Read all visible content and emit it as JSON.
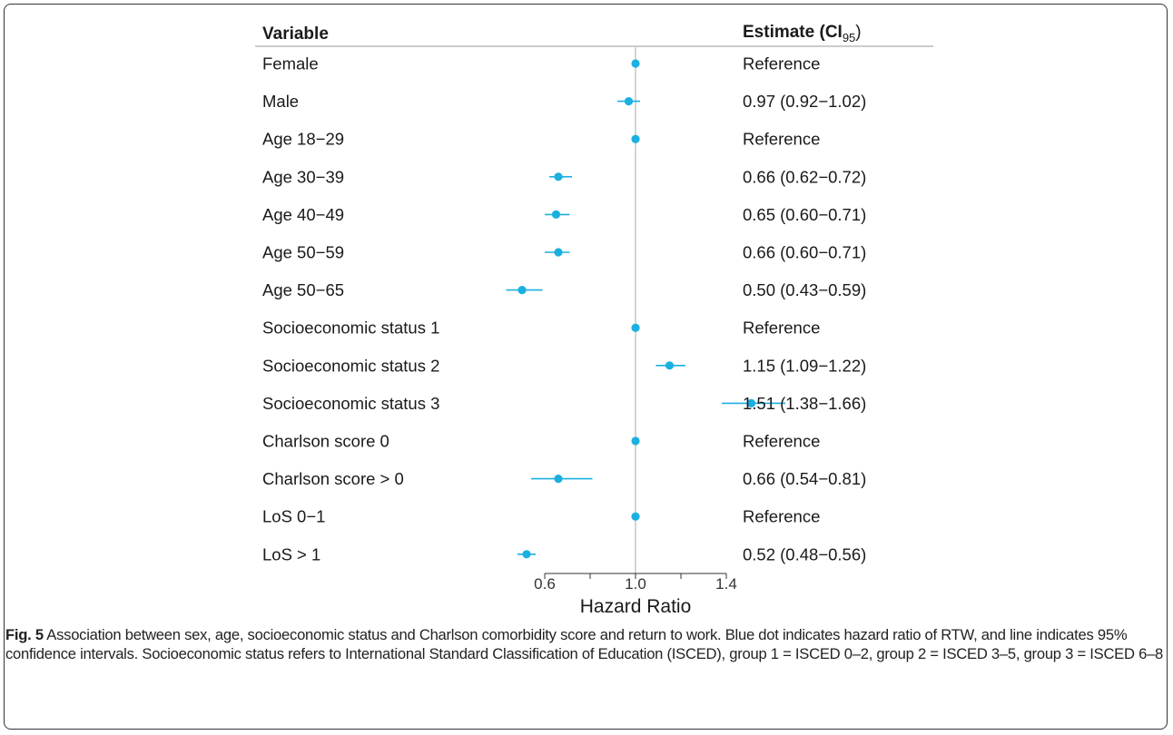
{
  "chart_data": {
    "type": "forest",
    "column_headers": {
      "variable": "Variable",
      "estimate_main": "Estimate (",
      "estimate_bold": "CI",
      "estimate_sub": "95",
      "estimate_close": ")"
    },
    "rows": [
      {
        "label": "Female",
        "hr": 1.0,
        "lo": 1.0,
        "hi": 1.0,
        "estimate": "Reference"
      },
      {
        "label": "Male",
        "hr": 0.97,
        "lo": 0.92,
        "hi": 1.02,
        "estimate": "0.97 (0.92−1.02)"
      },
      {
        "label": "Age 18−29",
        "hr": 1.0,
        "lo": 1.0,
        "hi": 1.0,
        "estimate": "Reference"
      },
      {
        "label": "Age 30−39",
        "hr": 0.66,
        "lo": 0.62,
        "hi": 0.72,
        "estimate": "0.66 (0.62−0.72)"
      },
      {
        "label": "Age 40−49",
        "hr": 0.65,
        "lo": 0.6,
        "hi": 0.71,
        "estimate": "0.65 (0.60−0.71)"
      },
      {
        "label": "Age 50−59",
        "hr": 0.66,
        "lo": 0.6,
        "hi": 0.71,
        "estimate": "0.66 (0.60−0.71)"
      },
      {
        "label": "Age 50−65",
        "hr": 0.5,
        "lo": 0.43,
        "hi": 0.59,
        "estimate": "0.50 (0.43−0.59)"
      },
      {
        "label": "Socioeconomic status 1",
        "hr": 1.0,
        "lo": 1.0,
        "hi": 1.0,
        "estimate": "Reference"
      },
      {
        "label": "Socioeconomic status 2",
        "hr": 1.15,
        "lo": 1.09,
        "hi": 1.22,
        "estimate": "1.15 (1.09−1.22)"
      },
      {
        "label": "Socioeconomic status 3",
        "hr": 1.51,
        "lo": 1.38,
        "hi": 1.66,
        "estimate": "1.51 (1.38−1.66)"
      },
      {
        "label": "Charlson score 0",
        "hr": 1.0,
        "lo": 1.0,
        "hi": 1.0,
        "estimate": "Reference"
      },
      {
        "label": "Charlson score > 0",
        "hr": 0.66,
        "lo": 0.54,
        "hi": 0.81,
        "estimate": "0.66 (0.54−0.81)"
      },
      {
        "label": "LoS 0−1",
        "hr": 1.0,
        "lo": 1.0,
        "hi": 1.0,
        "estimate": "Reference"
      },
      {
        "label": "LoS > 1",
        "hr": 0.52,
        "lo": 0.48,
        "hi": 0.56,
        "estimate": "0.52 (0.48−0.56)"
      }
    ],
    "x_axis": {
      "label": "Hazard Ratio",
      "ticks": [
        0.6,
        0.8,
        1.0,
        1.2,
        1.4
      ],
      "tick_labels": [
        "0.6",
        "",
        "1.0",
        "",
        "1.4"
      ],
      "range": [
        0.6,
        1.4
      ],
      "reference_line": 1.0
    },
    "colors": {
      "point": "#1ab0e0",
      "reference_line": "#aaaaaa",
      "text": "#1a1a1a"
    }
  },
  "caption": {
    "label": "Fig. 5",
    "text": " Association between sex, age, socioeconomic status and Charlson comorbidity score and return to work. Blue dot indicates hazard ratio of RTW, and line indicates 95% confidence intervals. Socioeconomic status refers to International Standard Classification of Education (ISCED), group 1 = ISCED 0–2, group 2 = ISCED 3–5, group 3 = ISCED 6–8"
  }
}
